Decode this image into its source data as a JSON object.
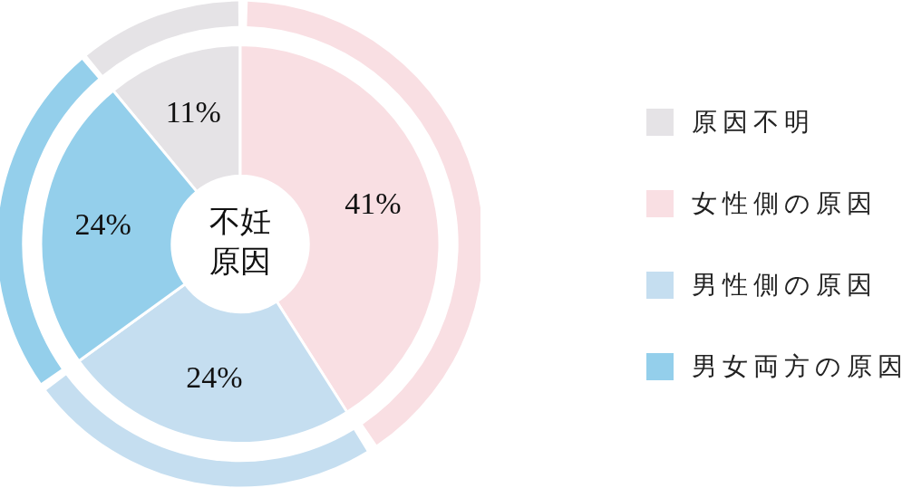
{
  "chart_data": {
    "type": "donut",
    "title": "不妊原因",
    "categories": [
      "原因不明",
      "女性側の原因",
      "男性側の原因",
      "男女両方の原因"
    ],
    "series": [
      {
        "values": [
          11,
          41,
          24,
          24
        ],
        "colors": [
          "#e5e3e6",
          "#f9dfe3",
          "#c5def0",
          "#94cfeb"
        ],
        "value_labels": [
          "11%",
          "41%",
          "24%",
          "24%"
        ]
      },
      {
        "values": [
          11,
          41,
          24,
          24
        ],
        "colors": [
          "#e5e3e6",
          "#f9dfe3",
          "#c5def0",
          "#94cfeb"
        ]
      }
    ],
    "legend": "right"
  }
}
